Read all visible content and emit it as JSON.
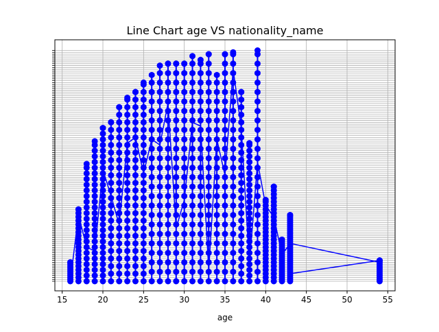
{
  "chart_data": {
    "type": "line",
    "title": "Line Chart age VS nationality_name",
    "xlabel": "age",
    "ylabel": "",
    "xlim": [
      14.1,
      55.9
    ],
    "xticks": [
      15,
      20,
      25,
      30,
      35,
      40,
      45,
      50,
      55
    ],
    "grid": true,
    "y_axis": "categorical nationality_name values; the ~120 overlapping tick labels are illegible except fragments such as \"Korea DPR\" at the top and \"Ireland\" near the bottom",
    "y_category_count": 120,
    "color": "#0000ff",
    "marker": "circle",
    "upper_envelope": {
      "age": [
        16,
        17,
        18,
        19,
        20,
        21,
        22,
        23,
        24,
        25,
        26,
        27,
        28,
        29,
        30,
        31,
        32,
        33,
        34,
        35,
        36,
        37,
        38,
        39,
        40,
        41,
        42,
        43,
        54
      ],
      "max_category_index": [
        10,
        38,
        62,
        74,
        81,
        84,
        92,
        97,
        100,
        105,
        109,
        114,
        115,
        115,
        115,
        119,
        117,
        120,
        109,
        120,
        121,
        100,
        73,
        122,
        43,
        50,
        22,
        35,
        11
      ]
    }
  }
}
